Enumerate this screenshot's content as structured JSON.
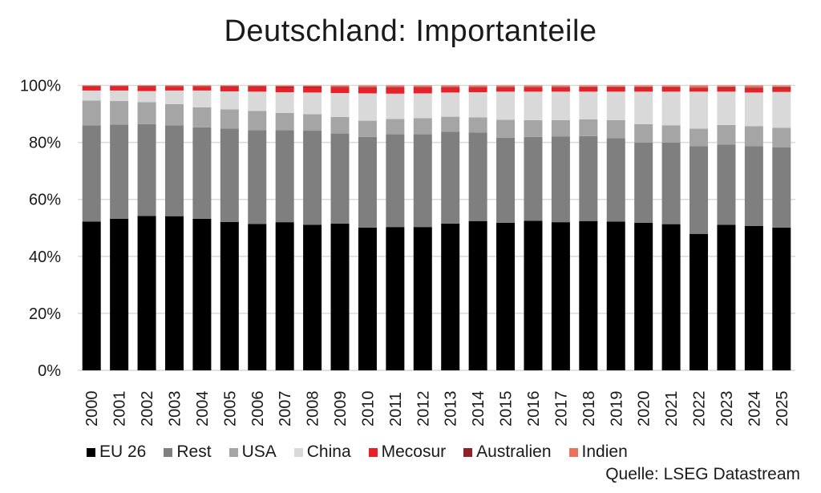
{
  "chart_data": {
    "type": "bar",
    "stacked": true,
    "percent": true,
    "title": "Deutschland: Importanteile",
    "xlabel": "",
    "ylabel": "",
    "ylim": [
      0,
      100
    ],
    "yticks": [
      "0%",
      "20%",
      "40%",
      "60%",
      "80%",
      "100%"
    ],
    "grid": "horizontal",
    "legend_position": "bottom",
    "source": "Quelle: LSEG Datastream",
    "categories": [
      "2000",
      "2001",
      "2002",
      "2003",
      "2004",
      "2005",
      "2006",
      "2007",
      "2008",
      "2009",
      "2010",
      "2011",
      "2012",
      "2013",
      "2014",
      "2015",
      "2016",
      "2017",
      "2018",
      "2019",
      "2020",
      "2021",
      "2022",
      "2023",
      "2024",
      "2025"
    ],
    "series": [
      {
        "name": "EU 26",
        "color": "#000000",
        "values": [
          52.2,
          53.2,
          54.2,
          54.1,
          53.2,
          52.1,
          51.4,
          52.0,
          51.1,
          51.5,
          50.1,
          50.3,
          50.3,
          51.5,
          52.4,
          51.8,
          52.5,
          52.0,
          52.4,
          52.2,
          51.8,
          51.3,
          47.9,
          51.1,
          50.7,
          50.1
        ]
      },
      {
        "name": "Rest",
        "color": "#7f7f7f",
        "values": [
          33.8,
          33.0,
          32.2,
          31.9,
          32.1,
          32.7,
          32.9,
          32.3,
          33.0,
          31.6,
          31.8,
          32.6,
          32.6,
          32.2,
          31.0,
          29.8,
          29.4,
          30.0,
          29.8,
          29.3,
          28.1,
          28.6,
          30.8,
          28.1,
          28.0,
          28.1
        ]
      },
      {
        "name": "USA",
        "color": "#a5a5a5",
        "values": [
          8.7,
          8.3,
          7.7,
          7.4,
          7.0,
          6.8,
          6.7,
          6.0,
          5.8,
          5.8,
          5.7,
          5.3,
          5.6,
          5.3,
          5.4,
          6.3,
          5.9,
          5.8,
          5.9,
          6.3,
          6.5,
          6.1,
          6.1,
          6.9,
          7.0,
          6.9
        ]
      },
      {
        "name": "China",
        "color": "#d9d9d9",
        "values": [
          3.5,
          3.7,
          3.9,
          4.8,
          5.9,
          6.3,
          6.8,
          7.3,
          7.6,
          8.4,
          9.6,
          8.9,
          8.7,
          8.5,
          8.8,
          9.9,
          10.0,
          10.0,
          9.7,
          10.0,
          11.4,
          11.8,
          13.0,
          11.7,
          11.8,
          12.6
        ]
      },
      {
        "name": "Mecosur",
        "color": "#e8202a",
        "values": [
          1.4,
          1.4,
          1.5,
          1.3,
          1.3,
          1.5,
          1.6,
          1.7,
          1.8,
          1.9,
          1.9,
          2.0,
          1.9,
          1.6,
          1.5,
          1.3,
          1.3,
          1.3,
          1.2,
          1.2,
          1.2,
          1.2,
          1.1,
          1.1,
          1.3,
          1.2
        ]
      },
      {
        "name": "Australien",
        "color": "#8b2328",
        "values": [
          0.2,
          0.2,
          0.3,
          0.2,
          0.2,
          0.3,
          0.3,
          0.3,
          0.3,
          0.3,
          0.3,
          0.3,
          0.3,
          0.3,
          0.3,
          0.3,
          0.3,
          0.3,
          0.3,
          0.3,
          0.3,
          0.3,
          0.3,
          0.4,
          0.4,
          0.4
        ]
      },
      {
        "name": "Indien",
        "color": "#e8735f",
        "values": [
          0.2,
          0.2,
          0.2,
          0.3,
          0.3,
          0.3,
          0.3,
          0.4,
          0.4,
          0.5,
          0.6,
          0.6,
          0.6,
          0.6,
          0.6,
          0.6,
          0.6,
          0.6,
          0.7,
          0.7,
          0.7,
          0.7,
          0.8,
          0.7,
          0.8,
          0.7
        ]
      }
    ]
  },
  "legend": {
    "items": [
      {
        "label": "EU 26",
        "color": "#000000"
      },
      {
        "label": "Rest",
        "color": "#7f7f7f"
      },
      {
        "label": "USA",
        "color": "#a5a5a5"
      },
      {
        "label": "China",
        "color": "#d9d9d9"
      },
      {
        "label": "Mecosur",
        "color": "#e8202a"
      },
      {
        "label": "Australien",
        "color": "#8b2328"
      },
      {
        "label": "Indien",
        "color": "#e8735f"
      }
    ]
  },
  "header": {
    "title": "Deutschland: Importanteile"
  },
  "footer": {
    "source": "Quelle: LSEG Datastream"
  }
}
